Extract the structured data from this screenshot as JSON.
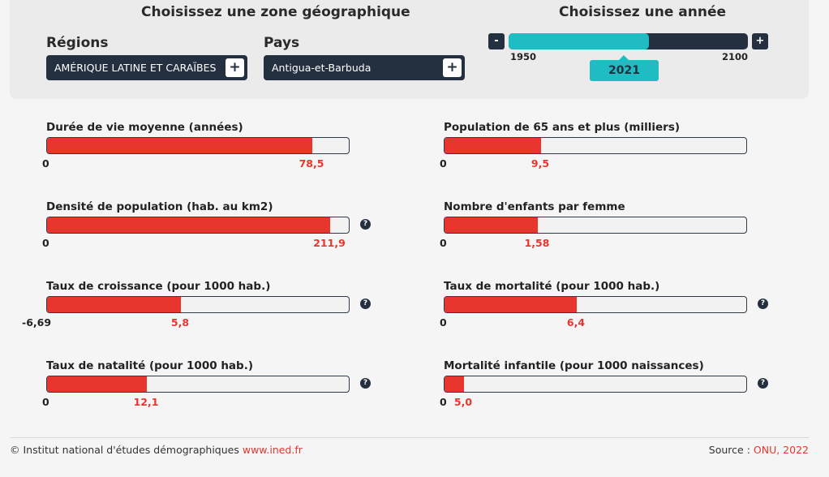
{
  "zone_title": "Choisissez une zone géographique",
  "year_title": "Choisissez une année",
  "regions": {
    "label": "Régions",
    "value": "AMÉRIQUE LATINE ET CARAÏBES",
    "button": "+"
  },
  "pays": {
    "label": "Pays",
    "value": "Antigua-et-Barbuda",
    "button": "+"
  },
  "year": {
    "minus": "-",
    "plus": "+",
    "min_label": "1950",
    "max_label": "2100",
    "min": 1950,
    "max": 2100,
    "current": 2021,
    "current_label": "2021"
  },
  "indicators": [
    {
      "label": "Durée de vie moyenne (années)",
      "min_label": "0",
      "value_label": "78,5",
      "fill": 0.873,
      "help": ""
    },
    {
      "label": "Population de 65 ans et plus (milliers)",
      "min_label": "0",
      "value_label": "9,5",
      "fill": 0.318,
      "help": ""
    },
    {
      "label": "Densité de population (hab. au km2)",
      "min_label": "0",
      "value_label": "211,9",
      "fill": 0.932,
      "help": "?"
    },
    {
      "label": "Nombre d'enfants par femme",
      "min_label": "0",
      "value_label": "1,58",
      "fill": 0.307,
      "help": ""
    },
    {
      "label": "Taux de croissance (pour 1000 hab.)",
      "min_label": "-6,69",
      "value_label": "5,8",
      "fill": 0.441,
      "help": "?"
    },
    {
      "label": "Taux de mortalité (pour 1000 hab.)",
      "min_label": "0",
      "value_label": "6,4",
      "fill": 0.436,
      "help": "?"
    },
    {
      "label": "Taux de natalité (pour 1000 hab.)",
      "min_label": "0",
      "value_label": "12,1",
      "fill": 0.33,
      "help": "?"
    },
    {
      "label": "Mortalité infantile (pour 1000 naissances)",
      "min_label": "0",
      "value_label": "5,0",
      "fill": 0.064,
      "help": "?"
    }
  ],
  "footer": {
    "copyright": "© Institut national d'études démographiques ",
    "link": "www.ined.fr",
    "source_prefix": "Source : ",
    "source": "ONU, 2022"
  },
  "colors": {
    "accent": "#20bcc4",
    "dark": "#243040",
    "bar_fill": "#e8362e"
  }
}
